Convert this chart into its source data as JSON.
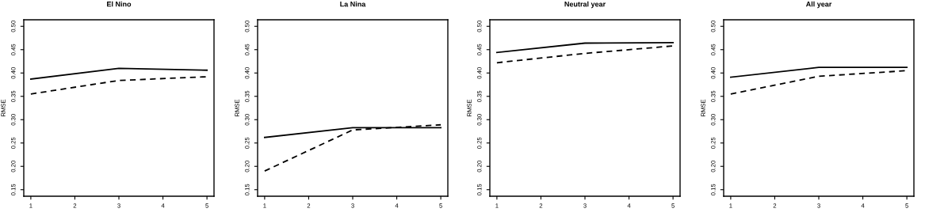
{
  "chart_data": [
    {
      "type": "line",
      "title": "El Nino",
      "ylabel": "RMSE",
      "x": [
        1,
        3,
        5
      ],
      "xlim": [
        0.84,
        5.16
      ],
      "xticks": [
        1,
        2,
        3,
        4,
        5
      ],
      "ylim": [
        0.136,
        0.514
      ],
      "yticks": [
        0.15,
        {
          "value": 0.2,
          "label": "0.20"
        },
        0.25,
        {
          "value": 0.3,
          "label": "0.30"
        },
        0.35,
        {
          "value": 0.4,
          "label": "0.40"
        },
        0.45,
        {
          "value": 0.5,
          "label": "0.50"
        }
      ],
      "grid": false,
      "legend": false,
      "marker": "none",
      "series": [
        {
          "color": "#000000",
          "line_style": "solid",
          "values": [
            0.387,
            0.41,
            0.406
          ]
        },
        {
          "color": "#000000",
          "line_style": "dashed",
          "values": [
            0.355,
            0.384,
            0.392
          ]
        }
      ]
    },
    {
      "type": "line",
      "title": "La Nina",
      "ylabel": "RMSE",
      "x": [
        1,
        3,
        5
      ],
      "xlim": [
        0.84,
        5.16
      ],
      "xticks": [
        1,
        2,
        3,
        4,
        5
      ],
      "ylim": [
        0.136,
        0.514
      ],
      "yticks": [
        0.15,
        {
          "value": 0.2,
          "label": "0.20"
        },
        0.25,
        {
          "value": 0.3,
          "label": "0.30"
        },
        0.35,
        {
          "value": 0.4,
          "label": "0.40"
        },
        0.45,
        {
          "value": 0.5,
          "label": "0.50"
        }
      ],
      "grid": false,
      "legend": false,
      "marker": "none",
      "series": [
        {
          "color": "#000000",
          "line_style": "solid",
          "values": [
            0.262,
            0.283,
            0.283
          ]
        },
        {
          "color": "#000000",
          "line_style": "dashed",
          "values": [
            0.19,
            0.278,
            0.289
          ]
        }
      ]
    },
    {
      "type": "line",
      "title": "Neutral year",
      "ylabel": "RMSE",
      "x": [
        1,
        3,
        5
      ],
      "xlim": [
        0.84,
        5.16
      ],
      "xticks": [
        1,
        2,
        3,
        4,
        5
      ],
      "ylim": [
        0.136,
        0.514
      ],
      "yticks": [
        0.15,
        {
          "value": 0.2,
          "label": "0.20"
        },
        0.25,
        {
          "value": 0.3,
          "label": "0.30"
        },
        0.35,
        {
          "value": 0.4,
          "label": "0.40"
        },
        0.45,
        {
          "value": 0.5,
          "label": "0.50"
        }
      ],
      "grid": false,
      "legend": false,
      "marker": "none",
      "series": [
        {
          "color": "#000000",
          "line_style": "solid",
          "values": [
            0.444,
            0.464,
            0.465
          ]
        },
        {
          "color": "#000000",
          "line_style": "dashed",
          "values": [
            0.422,
            0.442,
            0.458
          ]
        }
      ]
    },
    {
      "type": "line",
      "title": "All year",
      "ylabel": "RMSE",
      "x": [
        1,
        3,
        5
      ],
      "xlim": [
        0.84,
        5.16
      ],
      "xticks": [
        1,
        2,
        3,
        4,
        5
      ],
      "ylim": [
        0.136,
        0.514
      ],
      "yticks": [
        0.15,
        {
          "value": 0.2,
          "label": "0.20"
        },
        0.25,
        {
          "value": 0.3,
          "label": "0.30"
        },
        0.35,
        {
          "value": 0.4,
          "label": "0.40"
        },
        0.45,
        {
          "value": 0.5,
          "label": "0.50"
        }
      ],
      "grid": false,
      "legend": false,
      "marker": "none",
      "series": [
        {
          "color": "#000000",
          "line_style": "solid",
          "values": [
            0.391,
            0.412,
            0.412
          ]
        },
        {
          "color": "#000000",
          "line_style": "dashed",
          "values": [
            0.355,
            0.393,
            0.405
          ]
        }
      ]
    }
  ]
}
